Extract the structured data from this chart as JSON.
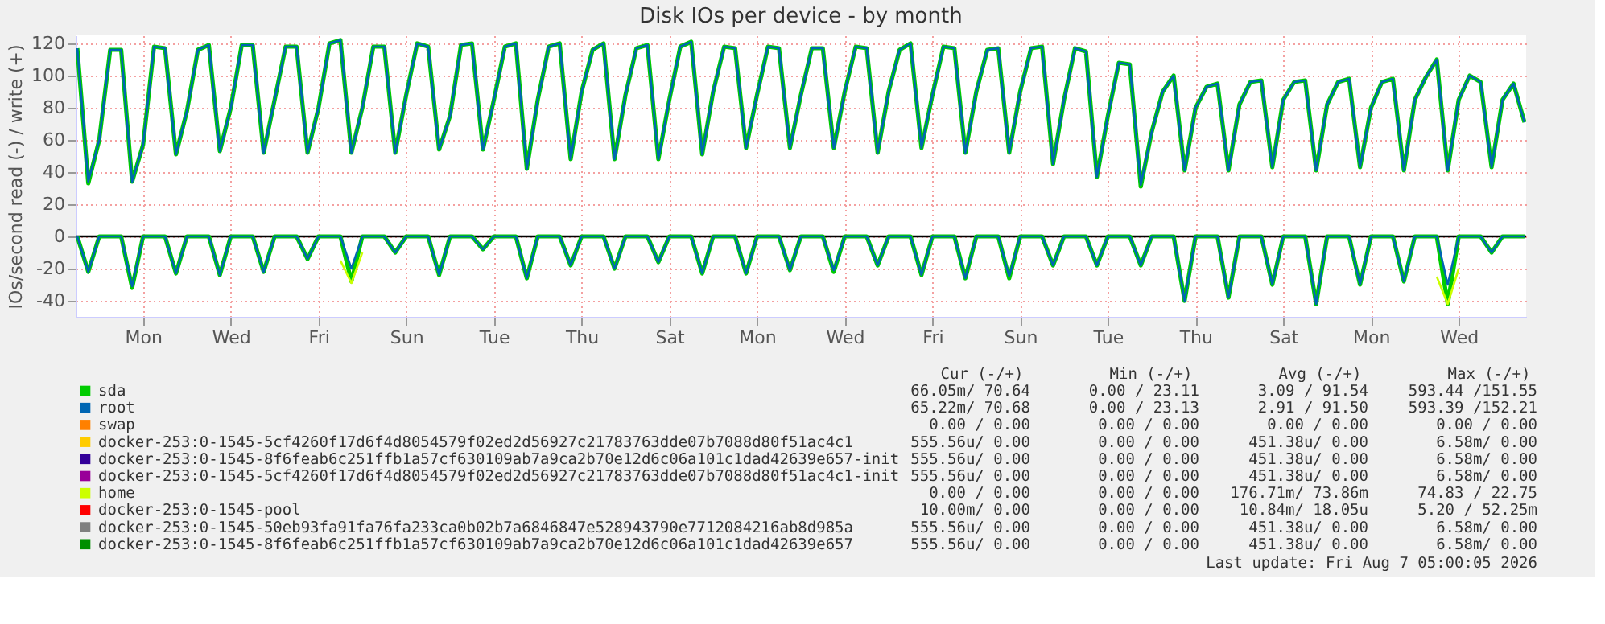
{
  "chart_data": {
    "type": "line",
    "title": "Disk IOs per device - by month",
    "ylabel": "IOs/second read (-) / write (+)",
    "ylim": [
      -50,
      125
    ],
    "yticks": [
      -40,
      -20,
      0,
      20,
      40,
      60,
      80,
      100,
      120
    ],
    "categories": [
      null,
      null,
      null,
      null,
      null,
      null,
      "Mon",
      null,
      null,
      null,
      null,
      null,
      null,
      null,
      "Wed",
      null,
      null,
      null,
      null,
      null,
      null,
      null,
      "Fri",
      null,
      null,
      null,
      null,
      null,
      null,
      null,
      "Sun",
      null,
      null,
      null,
      null,
      null,
      null,
      null,
      "Tue",
      null,
      null,
      null,
      null,
      null,
      null,
      null,
      "Thu",
      null,
      null,
      null,
      null,
      null,
      null,
      null,
      "Sat",
      null,
      null,
      null,
      null,
      null,
      null,
      null,
      "Mon",
      null,
      null,
      null,
      null,
      null,
      null,
      null,
      "Wed",
      null,
      null,
      null,
      null,
      null,
      null,
      null,
      "Fri",
      null,
      null,
      null,
      null,
      null,
      null,
      null,
      "Sun",
      null,
      null,
      null,
      null,
      null,
      null,
      null,
      "Tue",
      null,
      null,
      null,
      null,
      null,
      null,
      null,
      "Thu",
      null,
      null,
      null,
      null,
      null,
      null,
      null,
      "Sat",
      null,
      null,
      null,
      null,
      null,
      null,
      null,
      "Mon",
      null,
      null,
      null,
      null,
      null,
      null,
      null,
      "Wed",
      null,
      null,
      null,
      null,
      null,
      null
    ],
    "grid": true,
    "legend": "bottom",
    "line_style": "solid",
    "marker": "none",
    "ref_lines": [
      {
        "axis": "y",
        "value": 0,
        "color": "#000000"
      }
    ],
    "series": [
      {
        "name": "sda",
        "color": "#00cc00",
        "values": [
          117,
          33,
          60,
          116,
          116,
          34,
          57,
          118,
          117,
          51,
          78,
          116,
          119,
          53,
          80,
          119,
          119,
          52,
          85,
          118,
          118,
          52,
          80,
          120,
          122,
          52,
          80,
          118,
          118,
          52,
          88,
          120,
          118,
          54,
          75,
          119,
          120,
          54,
          85,
          118,
          120,
          42,
          85,
          118,
          120,
          48,
          90,
          116,
          120,
          48,
          88,
          117,
          119,
          48,
          85,
          118,
          121,
          51,
          90,
          118,
          117,
          55,
          88,
          118,
          117,
          55,
          88,
          117,
          117,
          55,
          90,
          118,
          117,
          52,
          90,
          116,
          120,
          55,
          88,
          118,
          117,
          52,
          90,
          116,
          117,
          52,
          90,
          117,
          118,
          45,
          85,
          117,
          115,
          37,
          75,
          108,
          107,
          31,
          65,
          90,
          100,
          41,
          80,
          93,
          95,
          41,
          82,
          96,
          97,
          43,
          85,
          96,
          97,
          41,
          82,
          96,
          98,
          43,
          80,
          96,
          98,
          41,
          85,
          99,
          110,
          41,
          85,
          100,
          96,
          43,
          85,
          95,
          71
        ]
      },
      {
        "color": "#00cc00",
        "values": [
          0,
          -22,
          0,
          0,
          0,
          -32,
          0,
          0,
          0,
          -23,
          0,
          0,
          0,
          -24,
          0,
          0,
          0,
          -22,
          0,
          0,
          0,
          -14,
          0,
          0,
          0,
          -28,
          0,
          0,
          0,
          -10,
          0,
          0,
          0,
          -24,
          0,
          0,
          0,
          -8,
          0,
          0,
          0,
          -26,
          0,
          0,
          0,
          -18,
          0,
          0,
          0,
          -20,
          0,
          0,
          0,
          -16,
          0,
          0,
          0,
          -23,
          0,
          0,
          0,
          -23,
          0,
          0,
          0,
          -21,
          0,
          0,
          0,
          -22,
          0,
          0,
          0,
          -18,
          0,
          0,
          0,
          -24,
          0,
          0,
          0,
          -26,
          0,
          0,
          0,
          -26,
          0,
          0,
          0,
          -18,
          0,
          0,
          0,
          -18,
          0,
          0,
          0,
          -18,
          0,
          0,
          0,
          -40,
          0,
          0,
          0,
          -38,
          0,
          0,
          0,
          -30,
          0,
          0,
          0,
          -42,
          0,
          0,
          0,
          -30,
          0,
          0,
          0,
          -28,
          0,
          0,
          0,
          -42,
          0,
          0,
          0,
          -10,
          0,
          0,
          0
        ]
      },
      {
        "name": "root",
        "color": "#0066b3",
        "values": [
          117,
          34,
          60,
          116,
          116,
          34,
          57,
          118,
          117,
          51,
          78,
          116,
          119,
          53,
          80,
          119,
          119,
          52,
          85,
          118,
          118,
          52,
          80,
          120,
          122,
          52,
          80,
          118,
          118,
          52,
          88,
          120,
          118,
          54,
          75,
          119,
          120,
          54,
          85,
          118,
          120,
          42,
          85,
          118,
          120,
          48,
          90,
          116,
          120,
          48,
          88,
          117,
          119,
          48,
          85,
          118,
          121,
          51,
          90,
          118,
          117,
          55,
          88,
          118,
          117,
          55,
          88,
          117,
          117,
          55,
          90,
          118,
          117,
          52,
          90,
          116,
          120,
          55,
          88,
          118,
          117,
          52,
          90,
          116,
          117,
          52,
          90,
          117,
          118,
          45,
          85,
          117,
          115,
          37,
          75,
          108,
          107,
          32,
          65,
          90,
          100,
          41,
          80,
          93,
          95,
          41,
          82,
          96,
          97,
          43,
          85,
          96,
          97,
          41,
          82,
          96,
          98,
          43,
          80,
          96,
          98,
          41,
          85,
          99,
          110,
          41,
          85,
          100,
          96,
          43,
          85,
          95,
          71
        ]
      },
      {
        "color": "#0066b3",
        "values": [
          0,
          -22,
          0,
          0,
          0,
          -31,
          0,
          0,
          0,
          -23,
          0,
          0,
          0,
          -24,
          0,
          0,
          0,
          -22,
          0,
          0,
          0,
          -14,
          0,
          0,
          0,
          -20,
          0,
          0,
          0,
          -10,
          0,
          0,
          0,
          -24,
          0,
          0,
          0,
          -8,
          0,
          0,
          0,
          -26,
          0,
          0,
          0,
          -18,
          0,
          0,
          0,
          -20,
          0,
          0,
          0,
          -16,
          0,
          0,
          0,
          -23,
          0,
          0,
          0,
          -23,
          0,
          0,
          0,
          -21,
          0,
          0,
          0,
          -21,
          0,
          0,
          0,
          -18,
          0,
          0,
          0,
          -24,
          0,
          0,
          0,
          -26,
          0,
          0,
          0,
          -25,
          0,
          0,
          0,
          -18,
          0,
          0,
          0,
          -18,
          0,
          0,
          0,
          -18,
          0,
          0,
          0,
          -40,
          0,
          0,
          0,
          -38,
          0,
          0,
          0,
          -30,
          0,
          0,
          0,
          -42,
          0,
          0,
          0,
          -30,
          0,
          0,
          0,
          -28,
          0,
          0,
          0,
          -30,
          0,
          0,
          0,
          -10,
          0,
          0,
          0
        ]
      },
      {
        "name": "swap",
        "color": "#ff8000",
        "values": [
          null,
          null,
          null,
          null,
          null,
          null,
          null,
          null,
          null,
          null,
          null,
          null,
          null,
          null,
          null,
          null,
          null,
          null,
          null,
          null,
          null,
          null,
          null,
          null,
          null,
          null,
          null,
          null,
          null,
          null,
          null,
          null,
          null,
          null,
          null,
          null,
          null,
          null,
          null,
          null,
          null,
          null,
          null,
          null,
          null,
          null,
          null,
          null,
          null,
          null,
          null,
          null,
          null,
          null,
          null,
          null,
          null,
          null,
          null,
          null,
          null,
          null,
          null,
          null,
          null,
          null,
          null,
          null,
          null,
          null,
          null,
          null,
          null,
          null,
          null,
          null,
          null,
          null,
          null,
          null,
          null,
          null,
          null,
          null,
          null,
          null,
          null,
          null,
          null,
          null,
          null,
          null,
          null,
          null,
          null,
          null,
          null,
          null,
          null,
          null,
          null,
          null,
          null,
          null,
          null,
          null,
          null,
          null,
          null,
          null,
          null,
          null,
          null,
          null,
          null,
          null,
          null,
          null,
          null,
          null,
          null,
          null,
          null,
          null,
          null,
          null,
          null,
          null,
          null,
          null,
          null,
          null,
          null
        ]
      },
      {
        "name": "docker-253:0-1545-5cf4260f17d6f4d8054579f02ed2d56927c21783763dde07b7088d80f51ac4c1",
        "color": "#ffcc00",
        "values": [
          null,
          null,
          null,
          null,
          null,
          null,
          null,
          null,
          null,
          null,
          null,
          null,
          null,
          null,
          null,
          null,
          null,
          null,
          null,
          null,
          null,
          null,
          null,
          null,
          null,
          null,
          null,
          null,
          null,
          null,
          null,
          null,
          null,
          null,
          null,
          null,
          null,
          null,
          null,
          null,
          null,
          null,
          null,
          null,
          null,
          null,
          null,
          null,
          null,
          null,
          null,
          null,
          null,
          null,
          null,
          null,
          null,
          null,
          null,
          null,
          null,
          null,
          null,
          null,
          null,
          null,
          null,
          null,
          null,
          null,
          null,
          null,
          null,
          null,
          null,
          null,
          null,
          null,
          null,
          null,
          null,
          null,
          null,
          null,
          null,
          null,
          null,
          null,
          null,
          null,
          null,
          null,
          null,
          null,
          null,
          null,
          null,
          null,
          null,
          null,
          null,
          null,
          null,
          null,
          null,
          null,
          null,
          null,
          null,
          null,
          null,
          null,
          null,
          null,
          null,
          null,
          null,
          null,
          null,
          null,
          null,
          null,
          null,
          null,
          null,
          null,
          null,
          null,
          null,
          null,
          null,
          null,
          null
        ]
      },
      {
        "name": "docker-253:0-1545-8f6feab6c251ffb1a57cf630109ab7a9ca2b70e12d6c06a101c1dad42639e657-init",
        "color": "#330099",
        "values": [
          null,
          null,
          null,
          null,
          null,
          null,
          null,
          null,
          null,
          null,
          null,
          null,
          null,
          null,
          null,
          null,
          null,
          null,
          null,
          null,
          null,
          null,
          null,
          null,
          null,
          null,
          null,
          null,
          null,
          null,
          null,
          null,
          null,
          null,
          null,
          null,
          null,
          null,
          null,
          null,
          null,
          null,
          null,
          null,
          null,
          null,
          null,
          null,
          null,
          null,
          null,
          null,
          null,
          null,
          null,
          null,
          null,
          null,
          null,
          null,
          null,
          null,
          null,
          null,
          null,
          null,
          null,
          null,
          null,
          null,
          null,
          null,
          null,
          null,
          null,
          null,
          null,
          null,
          null,
          null,
          null,
          null,
          null,
          null,
          null,
          null,
          null,
          null,
          null,
          null,
          null,
          null,
          null,
          null,
          null,
          null,
          null,
          null,
          null,
          null,
          null,
          null,
          null,
          null,
          null,
          null,
          null,
          null,
          null,
          null,
          null,
          null,
          null,
          null,
          null,
          null,
          null,
          null,
          null,
          null,
          null,
          null,
          null,
          null,
          null,
          null,
          null,
          null,
          null,
          null,
          null,
          null,
          null
        ]
      },
      {
        "name": "docker-253:0-1545-5cf4260f17d6f4d8054579f02ed2d56927c21783763dde07b7088d80f51ac4c1-init",
        "color": "#990099",
        "values": [
          null,
          null,
          null,
          null,
          null,
          null,
          null,
          null,
          null,
          null,
          null,
          null,
          null,
          null,
          null,
          null,
          null,
          null,
          null,
          null,
          null,
          null,
          null,
          null,
          null,
          null,
          null,
          null,
          null,
          null,
          null,
          null,
          null,
          null,
          null,
          null,
          null,
          null,
          null,
          null,
          null,
          null,
          null,
          null,
          null,
          null,
          null,
          null,
          null,
          null,
          null,
          null,
          null,
          null,
          null,
          null,
          null,
          null,
          null,
          null,
          null,
          null,
          null,
          null,
          null,
          null,
          null,
          null,
          null,
          null,
          null,
          null,
          null,
          null,
          null,
          null,
          null,
          null,
          null,
          null,
          null,
          null,
          null,
          null,
          null,
          null,
          null,
          null,
          null,
          null,
          null,
          null,
          null,
          null,
          null,
          null,
          null,
          null,
          null,
          null,
          null,
          null,
          null,
          null,
          null,
          null,
          null,
          null,
          null,
          null,
          null,
          null,
          null,
          null,
          null,
          null,
          null,
          null,
          null,
          null,
          null,
          null,
          null,
          null,
          null,
          null,
          null,
          null,
          null,
          null,
          null,
          null,
          null
        ]
      },
      {
        "name": "home",
        "color": "#ccff00",
        "values": [
          null,
          null,
          null,
          null,
          null,
          null,
          null,
          null,
          null,
          null,
          null,
          null,
          null,
          null,
          null,
          null,
          null,
          null,
          null,
          null,
          null,
          null,
          null,
          null,
          -15,
          -29,
          -10,
          null,
          null,
          null,
          null,
          null,
          null,
          null,
          null,
          null,
          null,
          null,
          null,
          null,
          null,
          null,
          null,
          null,
          null,
          null,
          null,
          null,
          null,
          null,
          null,
          null,
          null,
          null,
          null,
          null,
          null,
          null,
          null,
          null,
          null,
          null,
          null,
          null,
          null,
          null,
          null,
          null,
          null,
          null,
          null,
          null,
          null,
          null,
          null,
          null,
          null,
          null,
          null,
          null,
          null,
          null,
          null,
          null,
          null,
          null,
          null,
          null,
          null,
          null,
          null,
          null,
          null,
          null,
          null,
          null,
          null,
          null,
          null,
          null,
          null,
          null,
          null,
          null,
          null,
          null,
          null,
          null,
          null,
          null,
          null,
          null,
          null,
          null,
          null,
          null,
          null,
          null,
          null,
          null,
          null,
          null,
          null,
          null,
          -25,
          -42,
          -20,
          null,
          null,
          null,
          null,
          null,
          null
        ]
      },
      {
        "name": "docker-253:0-1545-pool",
        "color": "#ff0000",
        "values": [
          null,
          null,
          null,
          null,
          null,
          null,
          null,
          null,
          null,
          null,
          null,
          null,
          null,
          null,
          null,
          null,
          null,
          null,
          null,
          null,
          null,
          null,
          null,
          null,
          null,
          null,
          null,
          null,
          null,
          null,
          null,
          null,
          null,
          null,
          null,
          null,
          null,
          null,
          null,
          null,
          null,
          null,
          null,
          null,
          null,
          null,
          null,
          null,
          null,
          null,
          null,
          null,
          null,
          null,
          null,
          null,
          null,
          null,
          null,
          null,
          null,
          null,
          null,
          null,
          null,
          null,
          null,
          null,
          null,
          null,
          null,
          null,
          null,
          null,
          null,
          null,
          null,
          null,
          null,
          null,
          null,
          null,
          null,
          null,
          null,
          null,
          null,
          null,
          null,
          null,
          null,
          null,
          null,
          null,
          null,
          null,
          null,
          null,
          null,
          null,
          null,
          null,
          null,
          null,
          null,
          null,
          null,
          null,
          null,
          null,
          null,
          null,
          null,
          null,
          null,
          null,
          null,
          null,
          null,
          null,
          null,
          null,
          null,
          null,
          null,
          null,
          null,
          null,
          null,
          null,
          null,
          null,
          null
        ]
      },
      {
        "name": "docker-253:0-1545-50eb93fa91fa76fa233ca0b02b7a6846847e528943790e7712084216ab8d985a",
        "color": "#808080",
        "values": [
          null,
          null,
          null,
          null,
          null,
          null,
          null,
          null,
          null,
          null,
          null,
          null,
          null,
          null,
          null,
          null,
          null,
          null,
          null,
          null,
          null,
          null,
          null,
          null,
          null,
          null,
          null,
          null,
          null,
          null,
          null,
          null,
          null,
          null,
          null,
          null,
          null,
          null,
          null,
          null,
          null,
          null,
          null,
          null,
          null,
          null,
          null,
          null,
          null,
          null,
          null,
          null,
          null,
          null,
          null,
          null,
          null,
          null,
          null,
          null,
          null,
          null,
          null,
          null,
          null,
          null,
          null,
          null,
          null,
          null,
          null,
          null,
          null,
          null,
          null,
          null,
          null,
          null,
          null,
          null,
          null,
          null,
          null,
          null,
          null,
          null,
          null,
          null,
          null,
          null,
          null,
          null,
          null,
          null,
          null,
          null,
          null,
          null,
          null,
          null,
          null,
          null,
          null,
          null,
          null,
          null,
          null,
          null,
          null,
          null,
          null,
          null,
          null,
          null,
          null,
          null,
          null,
          null,
          null,
          null,
          null,
          null,
          null,
          null,
          null,
          null,
          null,
          null,
          null,
          null,
          null,
          null,
          null
        ]
      },
      {
        "name": "docker-253:0-1545-8f6feab6c251ffb1a57cf630109ab7a9ca2b70e12d6c06a101c1dad42639e657",
        "color": "#008f00",
        "values": [
          null,
          null,
          null,
          null,
          null,
          null,
          null,
          null,
          null,
          null,
          null,
          null,
          null,
          null,
          null,
          null,
          null,
          null,
          null,
          null,
          null,
          null,
          null,
          null,
          null,
          null,
          null,
          null,
          null,
          null,
          null,
          null,
          null,
          null,
          null,
          null,
          null,
          null,
          null,
          null,
          null,
          null,
          null,
          null,
          null,
          null,
          null,
          null,
          null,
          null,
          null,
          null,
          null,
          null,
          null,
          null,
          null,
          null,
          null,
          null,
          null,
          null,
          null,
          null,
          null,
          null,
          null,
          null,
          null,
          null,
          null,
          null,
          null,
          null,
          null,
          null,
          null,
          null,
          null,
          null,
          null,
          null,
          null,
          null,
          null,
          null,
          null,
          null,
          null,
          null,
          null,
          null,
          null,
          null,
          null,
          null,
          null,
          null,
          null,
          null,
          null,
          null,
          null,
          null,
          null,
          null,
          null,
          null,
          null,
          null,
          null,
          null,
          null,
          null,
          null,
          null,
          null,
          null,
          null,
          null,
          null,
          null,
          null,
          null,
          null,
          null,
          null,
          null,
          null,
          null,
          null,
          null,
          null
        ]
      }
    ],
    "annotations": [
      "Cur (-/+)",
      "Min (-/+)",
      "Avg (-/+)",
      "Max (-/+)",
      "66.05m/ 70.64",
      "0.00 / 23.11",
      "3.09 / 91.54",
      "593.44 /151.55",
      "65.22m/ 70.68",
      "0.00 / 23.13",
      "2.91 / 91.50",
      "593.39 /152.21",
      "0.00 /  0.00",
      "0.00 /  0.00",
      "0.00 /  0.00",
      "0.00 /  0.00",
      "555.56u/  0.00",
      "0.00 /  0.00",
      "451.38u/  0.00",
      "6.58m/  0.00",
      "555.56u/  0.00",
      "0.00 /  0.00",
      "451.38u/  0.00",
      "6.58m/  0.00",
      "555.56u/  0.00",
      "0.00 /  0.00",
      "451.38u/  0.00",
      "6.58m/  0.00",
      "0.00 /  0.00",
      "0.00 /  0.00",
      "176.71m/ 73.86m",
      "74.83 / 22.75",
      "10.00m/  0.00",
      "0.00 /  0.00",
      "10.84m/ 18.05u",
      "5.20 / 52.25m",
      "555.56u/  0.00",
      "0.00 /  0.00",
      "451.38u/  0.00",
      "6.58m/  0.00",
      "555.56u/  0.00",
      "0.00 /  0.00",
      "451.38u/  0.00",
      "6.58m/  0.00",
      "Last update: Fri Aug  7 05:00:05 2026"
    ]
  }
}
